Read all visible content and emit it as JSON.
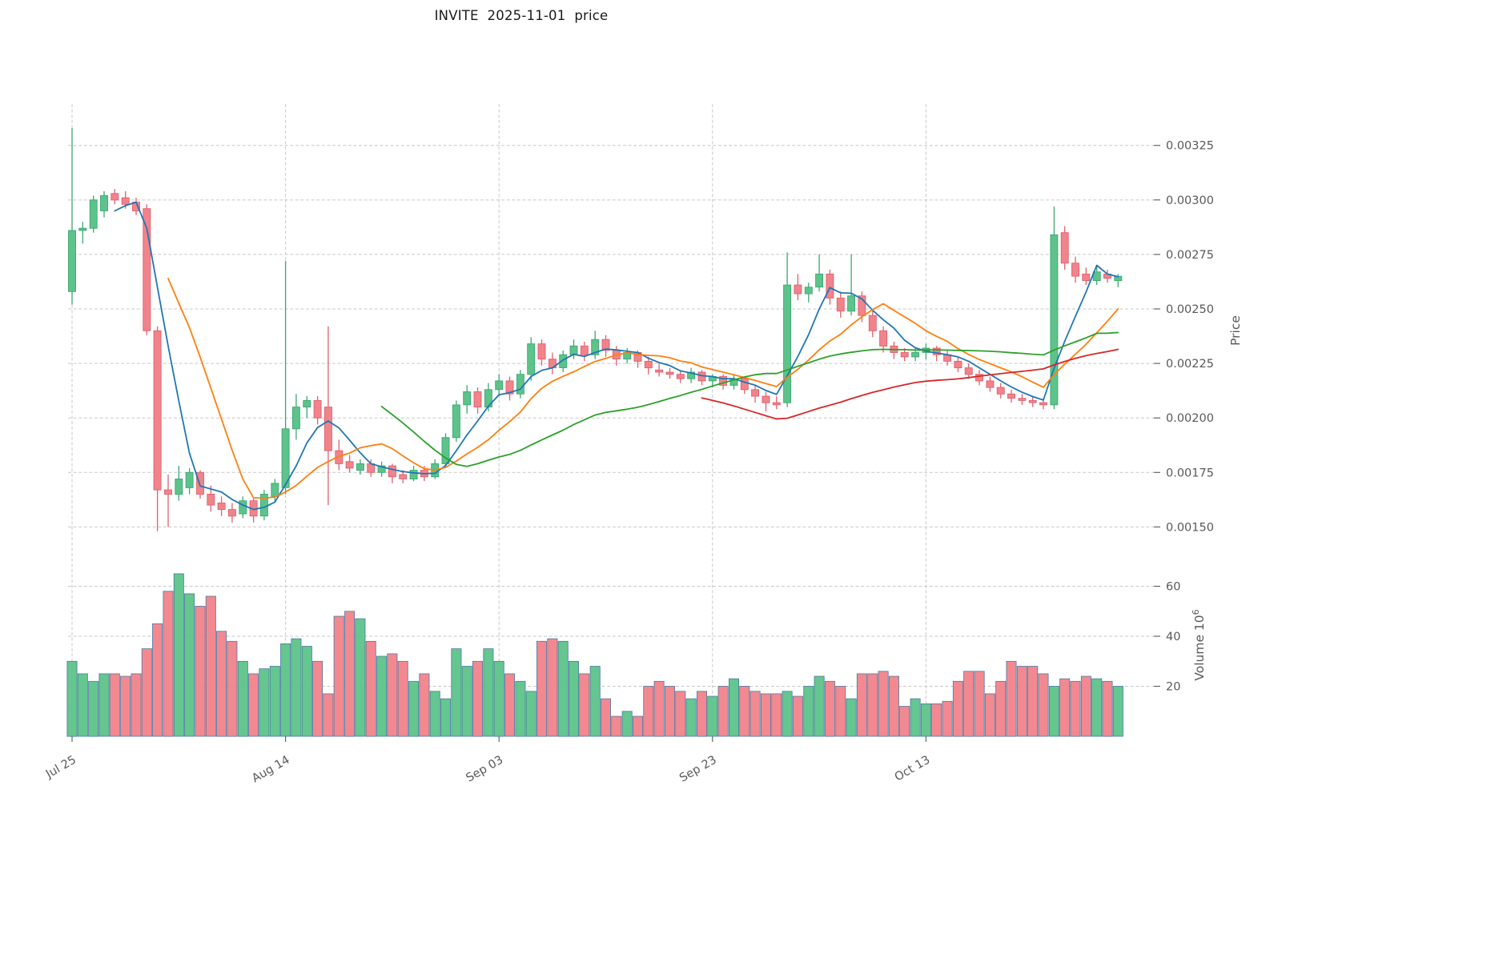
{
  "title": "INVITE  2025-11-01  price",
  "axes": {
    "price_axis_label": "Price",
    "volume_axis_label": "Volume",
    "volume_scale_base": "10",
    "volume_scale_exponent": "6",
    "price_tick_labels": [
      "0.00150",
      "0.00175",
      "0.00200",
      "0.00225",
      "0.00250",
      "0.00275",
      "0.00300",
      "0.00325"
    ],
    "price_tick_values": [
      0.0015,
      0.00175,
      0.002,
      0.00225,
      0.0025,
      0.00275,
      0.003,
      0.00325
    ],
    "volume_tick_labels": [
      "20",
      "40",
      "60"
    ],
    "volume_tick_values": [
      20,
      40,
      60
    ],
    "x_tick_labels": [
      "Jul 25",
      "Aug 14",
      "Sep 03",
      "Sep 23",
      "Oct 13"
    ],
    "x_tick_indices": [
      0,
      20,
      40,
      60,
      80
    ]
  },
  "chart_data": {
    "type": "candlestick_with_volume",
    "symbol": "INVITE",
    "ohlc_format": [
      "open",
      "high",
      "low",
      "close"
    ],
    "price_range": [
      0.00145,
      0.00344
    ],
    "volume_range": [
      0,
      72
    ],
    "volume_units": "millions",
    "grid": true,
    "moving_averages": [
      {
        "window": 5,
        "color": "#1f77b4"
      },
      {
        "window": 10,
        "color": "#ff7f0e"
      },
      {
        "window": 30,
        "color": "#2ca02c"
      },
      {
        "window": 60,
        "color": "#d62728"
      }
    ],
    "colors": {
      "up": "#5dc38a",
      "down": "#f1838b",
      "up_edge": "#3aa873",
      "down_edge": "#e15f6d",
      "volume_edge": "#4a7aa0",
      "grid": "#c9c9c9",
      "label": "#595959"
    },
    "ohlc": [
      [
        0.00258,
        0.00333,
        0.00252,
        0.00286
      ],
      [
        0.00286,
        0.0029,
        0.0028,
        0.00287
      ],
      [
        0.00287,
        0.00302,
        0.00285,
        0.003
      ],
      [
        0.00295,
        0.00304,
        0.00292,
        0.00302
      ],
      [
        0.00303,
        0.00305,
        0.00298,
        0.003
      ],
      [
        0.00301,
        0.00304,
        0.00296,
        0.00298
      ],
      [
        0.00299,
        0.00301,
        0.00293,
        0.00295
      ],
      [
        0.00296,
        0.00298,
        0.00238,
        0.0024
      ],
      [
        0.0024,
        0.00242,
        0.00148,
        0.00167
      ],
      [
        0.00167,
        0.00174,
        0.0015,
        0.00165
      ],
      [
        0.00165,
        0.00178,
        0.00162,
        0.00172
      ],
      [
        0.00168,
        0.00177,
        0.00165,
        0.00175
      ],
      [
        0.00175,
        0.00176,
        0.00163,
        0.00165
      ],
      [
        0.00165,
        0.00169,
        0.00157,
        0.0016
      ],
      [
        0.00161,
        0.00164,
        0.00155,
        0.00158
      ],
      [
        0.00158,
        0.00161,
        0.00152,
        0.00155
      ],
      [
        0.00156,
        0.00164,
        0.00154,
        0.00162
      ],
      [
        0.00162,
        0.00163,
        0.00152,
        0.00155
      ],
      [
        0.00155,
        0.00167,
        0.00153,
        0.00165
      ],
      [
        0.00164,
        0.00172,
        0.00161,
        0.0017
      ],
      [
        0.00168,
        0.00272,
        0.00165,
        0.00195
      ],
      [
        0.00195,
        0.00211,
        0.0019,
        0.00205
      ],
      [
        0.00205,
        0.0021,
        0.002,
        0.00208
      ],
      [
        0.00208,
        0.0021,
        0.00197,
        0.002
      ],
      [
        0.00205,
        0.00242,
        0.0016,
        0.00185
      ],
      [
        0.00185,
        0.0019,
        0.00176,
        0.00179
      ],
      [
        0.0018,
        0.00183,
        0.00175,
        0.00177
      ],
      [
        0.00176,
        0.00181,
        0.00174,
        0.00179
      ],
      [
        0.00179,
        0.00181,
        0.00173,
        0.00175
      ],
      [
        0.00175,
        0.0018,
        0.00173,
        0.00178
      ],
      [
        0.00178,
        0.00179,
        0.0017,
        0.00173
      ],
      [
        0.00174,
        0.00176,
        0.0017,
        0.00172
      ],
      [
        0.00172,
        0.00178,
        0.00171,
        0.00176
      ],
      [
        0.00176,
        0.00178,
        0.00171,
        0.00173
      ],
      [
        0.00173,
        0.00181,
        0.00172,
        0.00179
      ],
      [
        0.00179,
        0.00193,
        0.00177,
        0.00191
      ],
      [
        0.00191,
        0.00208,
        0.00189,
        0.00206
      ],
      [
        0.00206,
        0.00215,
        0.00202,
        0.00212
      ],
      [
        0.00212,
        0.00214,
        0.00202,
        0.00205
      ],
      [
        0.00205,
        0.00216,
        0.00203,
        0.00213
      ],
      [
        0.00213,
        0.0022,
        0.0021,
        0.00217
      ],
      [
        0.00217,
        0.00219,
        0.00208,
        0.00211
      ],
      [
        0.00211,
        0.00222,
        0.00209,
        0.0022
      ],
      [
        0.0022,
        0.00237,
        0.00217,
        0.00234
      ],
      [
        0.00234,
        0.00236,
        0.00224,
        0.00227
      ],
      [
        0.00227,
        0.0023,
        0.0022,
        0.00223
      ],
      [
        0.00223,
        0.00231,
        0.00221,
        0.00229
      ],
      [
        0.00229,
        0.00236,
        0.00227,
        0.00233
      ],
      [
        0.00233,
        0.00235,
        0.00226,
        0.00229
      ],
      [
        0.00229,
        0.0024,
        0.00227,
        0.00236
      ],
      [
        0.00236,
        0.00238,
        0.00228,
        0.00231
      ],
      [
        0.00231,
        0.00233,
        0.00224,
        0.00227
      ],
      [
        0.00227,
        0.00232,
        0.00225,
        0.0023
      ],
      [
        0.0023,
        0.00231,
        0.00223,
        0.00226
      ],
      [
        0.00226,
        0.00228,
        0.0022,
        0.00223
      ],
      [
        0.00222,
        0.00225,
        0.00219,
        0.00221
      ],
      [
        0.00221,
        0.00223,
        0.00218,
        0.0022
      ],
      [
        0.0022,
        0.00222,
        0.00216,
        0.00218
      ],
      [
        0.00218,
        0.00223,
        0.00216,
        0.00221
      ],
      [
        0.00221,
        0.00222,
        0.00215,
        0.00217
      ],
      [
        0.00217,
        0.0022,
        0.00214,
        0.00219
      ],
      [
        0.00219,
        0.0022,
        0.00213,
        0.00215
      ],
      [
        0.00215,
        0.0022,
        0.00213,
        0.00218
      ],
      [
        0.00218,
        0.00219,
        0.00211,
        0.00213
      ],
      [
        0.00213,
        0.00215,
        0.00207,
        0.0021
      ],
      [
        0.0021,
        0.00212,
        0.00203,
        0.00207
      ],
      [
        0.00207,
        0.0021,
        0.00204,
        0.00206
      ],
      [
        0.00207,
        0.00276,
        0.00205,
        0.00261
      ],
      [
        0.00261,
        0.00266,
        0.00254,
        0.00257
      ],
      [
        0.00257,
        0.00262,
        0.00253,
        0.0026
      ],
      [
        0.0026,
        0.00275,
        0.00258,
        0.00266
      ],
      [
        0.00266,
        0.00268,
        0.00252,
        0.00255
      ],
      [
        0.00255,
        0.00258,
        0.00246,
        0.00249
      ],
      [
        0.00249,
        0.00275,
        0.00247,
        0.00256
      ],
      [
        0.00256,
        0.00258,
        0.00244,
        0.00247
      ],
      [
        0.00247,
        0.00249,
        0.00237,
        0.0024
      ],
      [
        0.0024,
        0.00242,
        0.0023,
        0.00233
      ],
      [
        0.00233,
        0.00235,
        0.00227,
        0.0023
      ],
      [
        0.0023,
        0.00232,
        0.00226,
        0.00228
      ],
      [
        0.00228,
        0.00232,
        0.00226,
        0.0023
      ],
      [
        0.0023,
        0.00234,
        0.00227,
        0.00232
      ],
      [
        0.00232,
        0.00233,
        0.00226,
        0.00229
      ],
      [
        0.00229,
        0.00231,
        0.00224,
        0.00226
      ],
      [
        0.00226,
        0.00228,
        0.00221,
        0.00223
      ],
      [
        0.00223,
        0.00225,
        0.00218,
        0.0022
      ],
      [
        0.0022,
        0.00222,
        0.00215,
        0.00217
      ],
      [
        0.00217,
        0.00219,
        0.00212,
        0.00214
      ],
      [
        0.00214,
        0.00216,
        0.00209,
        0.00211
      ],
      [
        0.00211,
        0.00213,
        0.00207,
        0.00209
      ],
      [
        0.00209,
        0.00211,
        0.00206,
        0.00208
      ],
      [
        0.00208,
        0.0021,
        0.00205,
        0.00207
      ],
      [
        0.00207,
        0.00209,
        0.00204,
        0.00206
      ],
      [
        0.00206,
        0.00297,
        0.00204,
        0.00284
      ],
      [
        0.00285,
        0.00288,
        0.00268,
        0.00271
      ],
      [
        0.00271,
        0.00274,
        0.00262,
        0.00265
      ],
      [
        0.00266,
        0.00269,
        0.00261,
        0.00263
      ],
      [
        0.00263,
        0.0027,
        0.00261,
        0.00267
      ],
      [
        0.00266,
        0.00268,
        0.00262,
        0.00264
      ],
      [
        0.00263,
        0.00266,
        0.0026,
        0.00265
      ]
    ],
    "volume": [
      30,
      25,
      22,
      25,
      25,
      24,
      25,
      35,
      45,
      58,
      65,
      57,
      52,
      56,
      42,
      38,
      30,
      25,
      27,
      28,
      37,
      39,
      36,
      30,
      17,
      48,
      50,
      47,
      38,
      32,
      33,
      30,
      22,
      25,
      18,
      15,
      35,
      28,
      30,
      35,
      30,
      25,
      22,
      18,
      38,
      39,
      38,
      30,
      25,
      28,
      15,
      8,
      10,
      8,
      20,
      22,
      20,
      18,
      15,
      18,
      16,
      20,
      23,
      20,
      18,
      17,
      17,
      18,
      16,
      20,
      24,
      22,
      20,
      15,
      25,
      25,
      26,
      24,
      12,
      15,
      13,
      13,
      14,
      22,
      26,
      26,
      17,
      22,
      30,
      28,
      28,
      25,
      20,
      23,
      22,
      24,
      23,
      22,
      20
    ]
  }
}
